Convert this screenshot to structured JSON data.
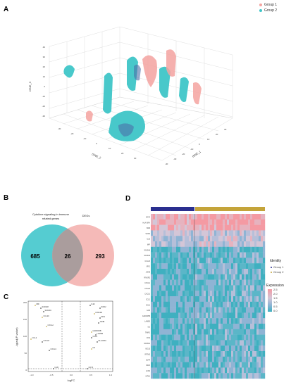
{
  "panels": {
    "A": "A",
    "B": "B",
    "C": "C",
    "D": "D"
  },
  "tsne": {
    "legend": [
      {
        "label": "Group 1",
        "color": "#f4a3a0"
      },
      {
        "label": "Group 2",
        "color": "#3fc6c8"
      }
    ],
    "axis_labels": {
      "z": "tSNE_3",
      "y": "tSNE_2",
      "x": "tSNE_1"
    },
    "z_ticks": [
      "40",
      "30",
      "20",
      "10",
      "0",
      "-10",
      "-20",
      "-30"
    ],
    "x_ticks": [
      "-40",
      "-30",
      "-20",
      "-10",
      "0",
      "10",
      "20",
      "30"
    ],
    "y_ticks": [
      "-30",
      "-20",
      "-10",
      "0",
      "10",
      "20",
      "30"
    ]
  },
  "venn": {
    "left_label_line1": "Cytokine signaling in immune",
    "left_label_line2": "related genes",
    "right_label": "DEGs",
    "left_only": "685",
    "overlap": "26",
    "right_only": "293",
    "left_color": "#43c6cc",
    "right_color": "#f1a3a0"
  },
  "volcano": {
    "ylabel": "-lg(adj.P-value)",
    "xlabel": "logFC",
    "y_ticks": [
      "200",
      "150",
      "100",
      "50",
      "0"
    ],
    "x_ticks": [
      "-1.0",
      "-0.5",
      "0.0",
      "0.5",
      "1.0"
    ],
    "genes": [
      {
        "label": "MIF"
      },
      {
        "label": "S100A8"
      },
      {
        "label": "S100A9"
      },
      {
        "label": "CCL20"
      },
      {
        "label": "IL32"
      },
      {
        "label": "SOD2"
      },
      {
        "label": "IFNGR2"
      },
      {
        "label": "IRF1"
      },
      {
        "label": "JUNB"
      },
      {
        "label": "CXCL2"
      },
      {
        "label": "CXCL8"
      },
      {
        "label": "CXCL3"
      },
      {
        "label": "CCL2"
      },
      {
        "label": "CCL3"
      },
      {
        "label": "IL1B"
      },
      {
        "label": "GADD45B"
      },
      {
        "label": "LAMB3"
      },
      {
        "label": "HLA-DRA"
      },
      {
        "label": "IL6"
      },
      {
        "label": "CD74"
      }
    ]
  },
  "heatmap": {
    "genes": [
      "CD74",
      "HLA-DRA",
      "B2M",
      "SOD2",
      "IL32",
      "MIF",
      "S100A8",
      "S100A9",
      "CCL20",
      "IRF1",
      "JUNB",
      "IFNGR2",
      "CXCL2",
      "CXCL8",
      "CXCL3",
      "CCL2",
      "CCL3",
      "IL1B",
      "GADD45B",
      "LAMB3",
      "IL6",
      "TIMP1",
      "FOS",
      "NFKBIA",
      "ISG15",
      "IFITM3",
      "CD44",
      "CSF3",
      "LCN2",
      "MT2A"
    ],
    "identity_title": "Identity",
    "identity_items": [
      {
        "label": "Group 1",
        "color": "#2a2f8f"
      },
      {
        "label": "Group 2",
        "color": "#c4a43a"
      }
    ],
    "expression_title": "Expression",
    "expression_ticks": [
      "2.5",
      "2.0",
      "1.5",
      "1.0",
      "0.5",
      "0.0"
    ]
  }
}
